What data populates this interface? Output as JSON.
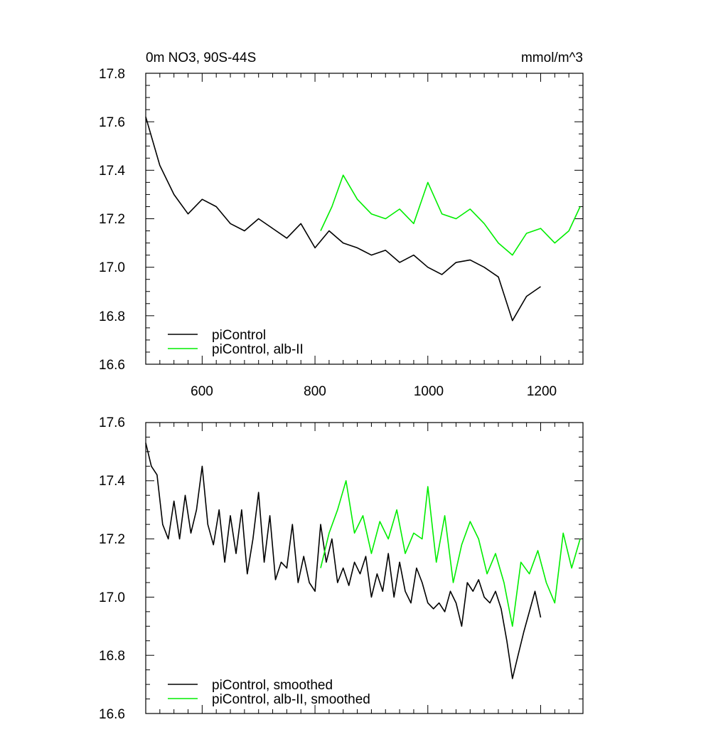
{
  "chart_data": [
    {
      "type": "line",
      "title": "0m NO3, 90S-44S",
      "units": "mmol/m^3",
      "xlim": [
        500,
        1275
      ],
      "ylim": [
        16.6,
        17.8
      ],
      "xticks": [
        600,
        800,
        1000,
        1200
      ],
      "xtick_labels": [
        "600",
        "800",
        "1000",
        "1200"
      ],
      "yticks": [
        16.6,
        16.8,
        17.0,
        17.2,
        17.4,
        17.6,
        17.8
      ],
      "ytick_labels": [
        "16.6",
        "16.8",
        "17.0",
        "17.2",
        "17.4",
        "17.6",
        "17.8"
      ],
      "legend_position": "bottom-left",
      "series": [
        {
          "name": "piControl",
          "color": "#000000",
          "x": [
            500,
            525,
            550,
            575,
            600,
            625,
            650,
            675,
            700,
            725,
            750,
            775,
            800,
            825,
            850,
            875,
            900,
            925,
            950,
            975,
            1000,
            1025,
            1050,
            1075,
            1100,
            1125,
            1150,
            1175,
            1200
          ],
          "values": [
            17.62,
            17.42,
            17.3,
            17.22,
            17.28,
            17.25,
            17.18,
            17.15,
            17.2,
            17.16,
            17.12,
            17.18,
            17.08,
            17.15,
            17.1,
            17.08,
            17.05,
            17.07,
            17.02,
            17.05,
            17.0,
            16.97,
            17.02,
            17.03,
            17.0,
            16.96,
            16.78,
            16.88,
            16.92
          ]
        },
        {
          "name": "piControl, alb-II",
          "color": "#00ee00",
          "x": [
            810,
            830,
            850,
            875,
            900,
            925,
            950,
            975,
            1000,
            1025,
            1050,
            1075,
            1100,
            1125,
            1150,
            1175,
            1200,
            1225,
            1250,
            1270
          ],
          "values": [
            17.15,
            17.25,
            17.38,
            17.28,
            17.22,
            17.2,
            17.24,
            17.18,
            17.35,
            17.22,
            17.2,
            17.24,
            17.18,
            17.1,
            17.05,
            17.14,
            17.16,
            17.1,
            17.15,
            17.25
          ]
        }
      ]
    },
    {
      "type": "line",
      "title": "",
      "xlim": [
        500,
        1275
      ],
      "ylim": [
        16.6,
        17.6
      ],
      "xticks": [
        600,
        800,
        1000,
        1200
      ],
      "yticks": [
        16.6,
        16.8,
        17.0,
        17.2,
        17.4,
        17.6
      ],
      "ytick_labels": [
        "16.6",
        "16.8",
        "17.0",
        "17.2",
        "17.4",
        "17.6"
      ],
      "legend_position": "bottom-left",
      "series": [
        {
          "name": "piControl, smoothed",
          "color": "#000000",
          "x": [
            500,
            510,
            520,
            530,
            540,
            550,
            560,
            570,
            580,
            590,
            600,
            610,
            620,
            630,
            640,
            650,
            660,
            670,
            680,
            690,
            700,
            710,
            720,
            730,
            740,
            750,
            760,
            770,
            780,
            790,
            800,
            810,
            820,
            830,
            840,
            850,
            860,
            870,
            880,
            890,
            900,
            910,
            920,
            930,
            940,
            950,
            960,
            970,
            980,
            990,
            1000,
            1010,
            1020,
            1030,
            1040,
            1050,
            1060,
            1070,
            1080,
            1090,
            1100,
            1110,
            1120,
            1130,
            1140,
            1150,
            1160,
            1170,
            1180,
            1190,
            1200
          ],
          "values": [
            17.53,
            17.45,
            17.42,
            17.25,
            17.2,
            17.33,
            17.2,
            17.35,
            17.22,
            17.3,
            17.45,
            17.25,
            17.18,
            17.3,
            17.12,
            17.28,
            17.15,
            17.3,
            17.08,
            17.2,
            17.36,
            17.12,
            17.28,
            17.06,
            17.12,
            17.1,
            17.25,
            17.05,
            17.14,
            17.05,
            17.02,
            17.25,
            17.12,
            17.2,
            17.05,
            17.1,
            17.04,
            17.12,
            17.08,
            17.14,
            17.0,
            17.08,
            17.02,
            17.15,
            17.0,
            17.12,
            17.02,
            16.98,
            17.1,
            17.05,
            16.98,
            16.96,
            16.98,
            16.95,
            17.02,
            16.98,
            16.9,
            17.05,
            17.02,
            17.06,
            17.0,
            16.98,
            17.02,
            16.96,
            16.85,
            16.72,
            16.8,
            16.88,
            16.95,
            17.02,
            16.93
          ]
        },
        {
          "name": "piControl, alb-II, smoothed",
          "color": "#00ee00",
          "x": [
            810,
            825,
            840,
            855,
            870,
            885,
            900,
            915,
            930,
            945,
            960,
            975,
            990,
            1000,
            1015,
            1030,
            1045,
            1060,
            1075,
            1090,
            1105,
            1120,
            1135,
            1150,
            1165,
            1180,
            1195,
            1210,
            1225,
            1240,
            1255,
            1270
          ],
          "values": [
            17.1,
            17.22,
            17.3,
            17.4,
            17.22,
            17.28,
            17.15,
            17.26,
            17.2,
            17.3,
            17.15,
            17.22,
            17.2,
            17.38,
            17.12,
            17.28,
            17.05,
            17.18,
            17.26,
            17.2,
            17.08,
            17.15,
            17.05,
            16.9,
            17.12,
            17.08,
            17.16,
            17.05,
            16.98,
            17.22,
            17.1,
            17.2
          ]
        }
      ]
    }
  ]
}
